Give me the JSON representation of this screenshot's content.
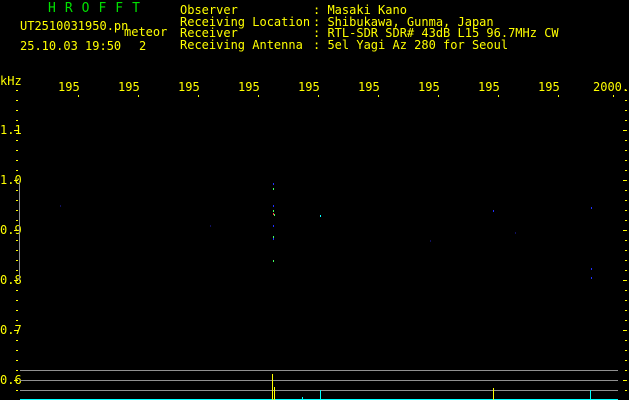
{
  "app_title": "HROFFT",
  "file_name": "UT2510031950.pn",
  "mode_label": "meteor",
  "datetime": "25.10.03 19:50",
  "count": "2",
  "info": [
    {
      "label": "Observer",
      "value": ": Masaki Kano"
    },
    {
      "label": "Receiving Location",
      "value": ": Shibukawa, Gunma, Japan"
    },
    {
      "label": "Receiver",
      "value": ": RTL-SDR SDR# 43dB L15 96.7MHz CW"
    },
    {
      "label": "Receiving Antenna",
      "value": ": 5el Yagi Az 280 for Seoul"
    }
  ],
  "y_unit": "kHz",
  "x_labels": [
    "195",
    "195",
    "195",
    "195",
    "195",
    "195",
    "195",
    "195",
    "195",
    "2000."
  ],
  "y_labels": [
    "1.1",
    "1.0",
    "0.9",
    "0.8",
    "0.7",
    "0.6"
  ],
  "colors": {
    "text": "#ffff00",
    "title": "#00e000",
    "grid": "#909090",
    "signal_cyan": "#00ffff",
    "signal_blue": "#2030ff"
  }
}
